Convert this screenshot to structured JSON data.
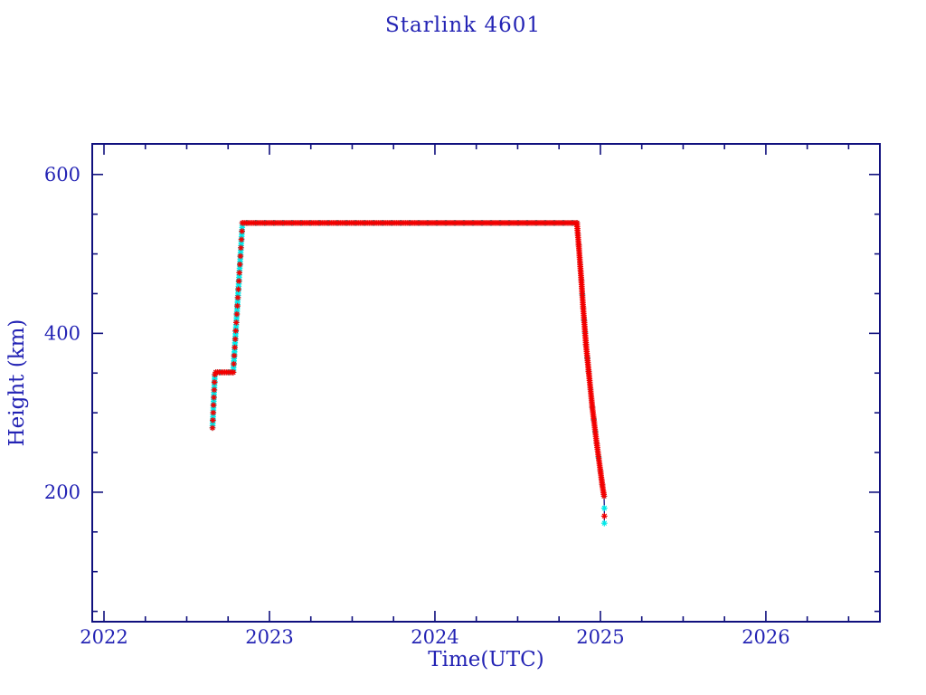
{
  "page": {
    "background": "#ffffff"
  },
  "chart_data": {
    "type": "scatter",
    "title": "Starlink 4601",
    "xlabel": "Time(UTC)",
    "ylabel": "Height (km)",
    "xlim": [
      2021.929,
      2026.689
    ],
    "ylim": [
      37,
      638.5
    ],
    "x_major_ticks": [
      2022,
      2023,
      2024,
      2025,
      2026
    ],
    "x_minor_interval_years": 0.25,
    "y_major_ticks": [
      200,
      400,
      600
    ],
    "y_minor_step": 50,
    "grid": false,
    "legend": false,
    "marker": "asterisk",
    "colors": {
      "frame": "#10107e",
      "text": "#2323b4",
      "track": "#00e9e9",
      "highlight": "#f20000",
      "line": "#000080"
    },
    "segments": [
      {
        "phase": "ascent",
        "points": [
          [
            2022.656,
            281
          ],
          [
            2022.67,
            348
          ]
        ]
      },
      {
        "phase": "plateau",
        "points": [
          [
            2022.676,
            351
          ],
          [
            2022.781,
            351
          ]
        ]
      },
      {
        "phase": "ascent",
        "points": [
          [
            2022.781,
            351
          ],
          [
            2022.837,
            539
          ]
        ]
      },
      {
        "phase": "plateau",
        "points": [
          [
            2022.837,
            539
          ],
          [
            2024.858,
            539
          ]
        ]
      },
      {
        "phase": "descent",
        "points": [
          [
            2024.858,
            539
          ],
          [
            2024.869,
            511
          ],
          [
            2024.885,
            466
          ],
          [
            2024.896,
            432
          ],
          [
            2024.913,
            386
          ],
          [
            2024.929,
            352
          ],
          [
            2024.951,
            307
          ],
          [
            2024.978,
            261
          ],
          [
            2025.0,
            227
          ],
          [
            2025.011,
            210
          ],
          [
            2025.022,
            195
          ]
        ]
      },
      {
        "phase": "tail",
        "points": [
          [
            2025.024,
            180
          ],
          [
            2025.024,
            170
          ],
          [
            2025.024,
            161
          ]
        ],
        "marker_colors": [
          "track",
          "highlight",
          "track"
        ]
      }
    ]
  }
}
